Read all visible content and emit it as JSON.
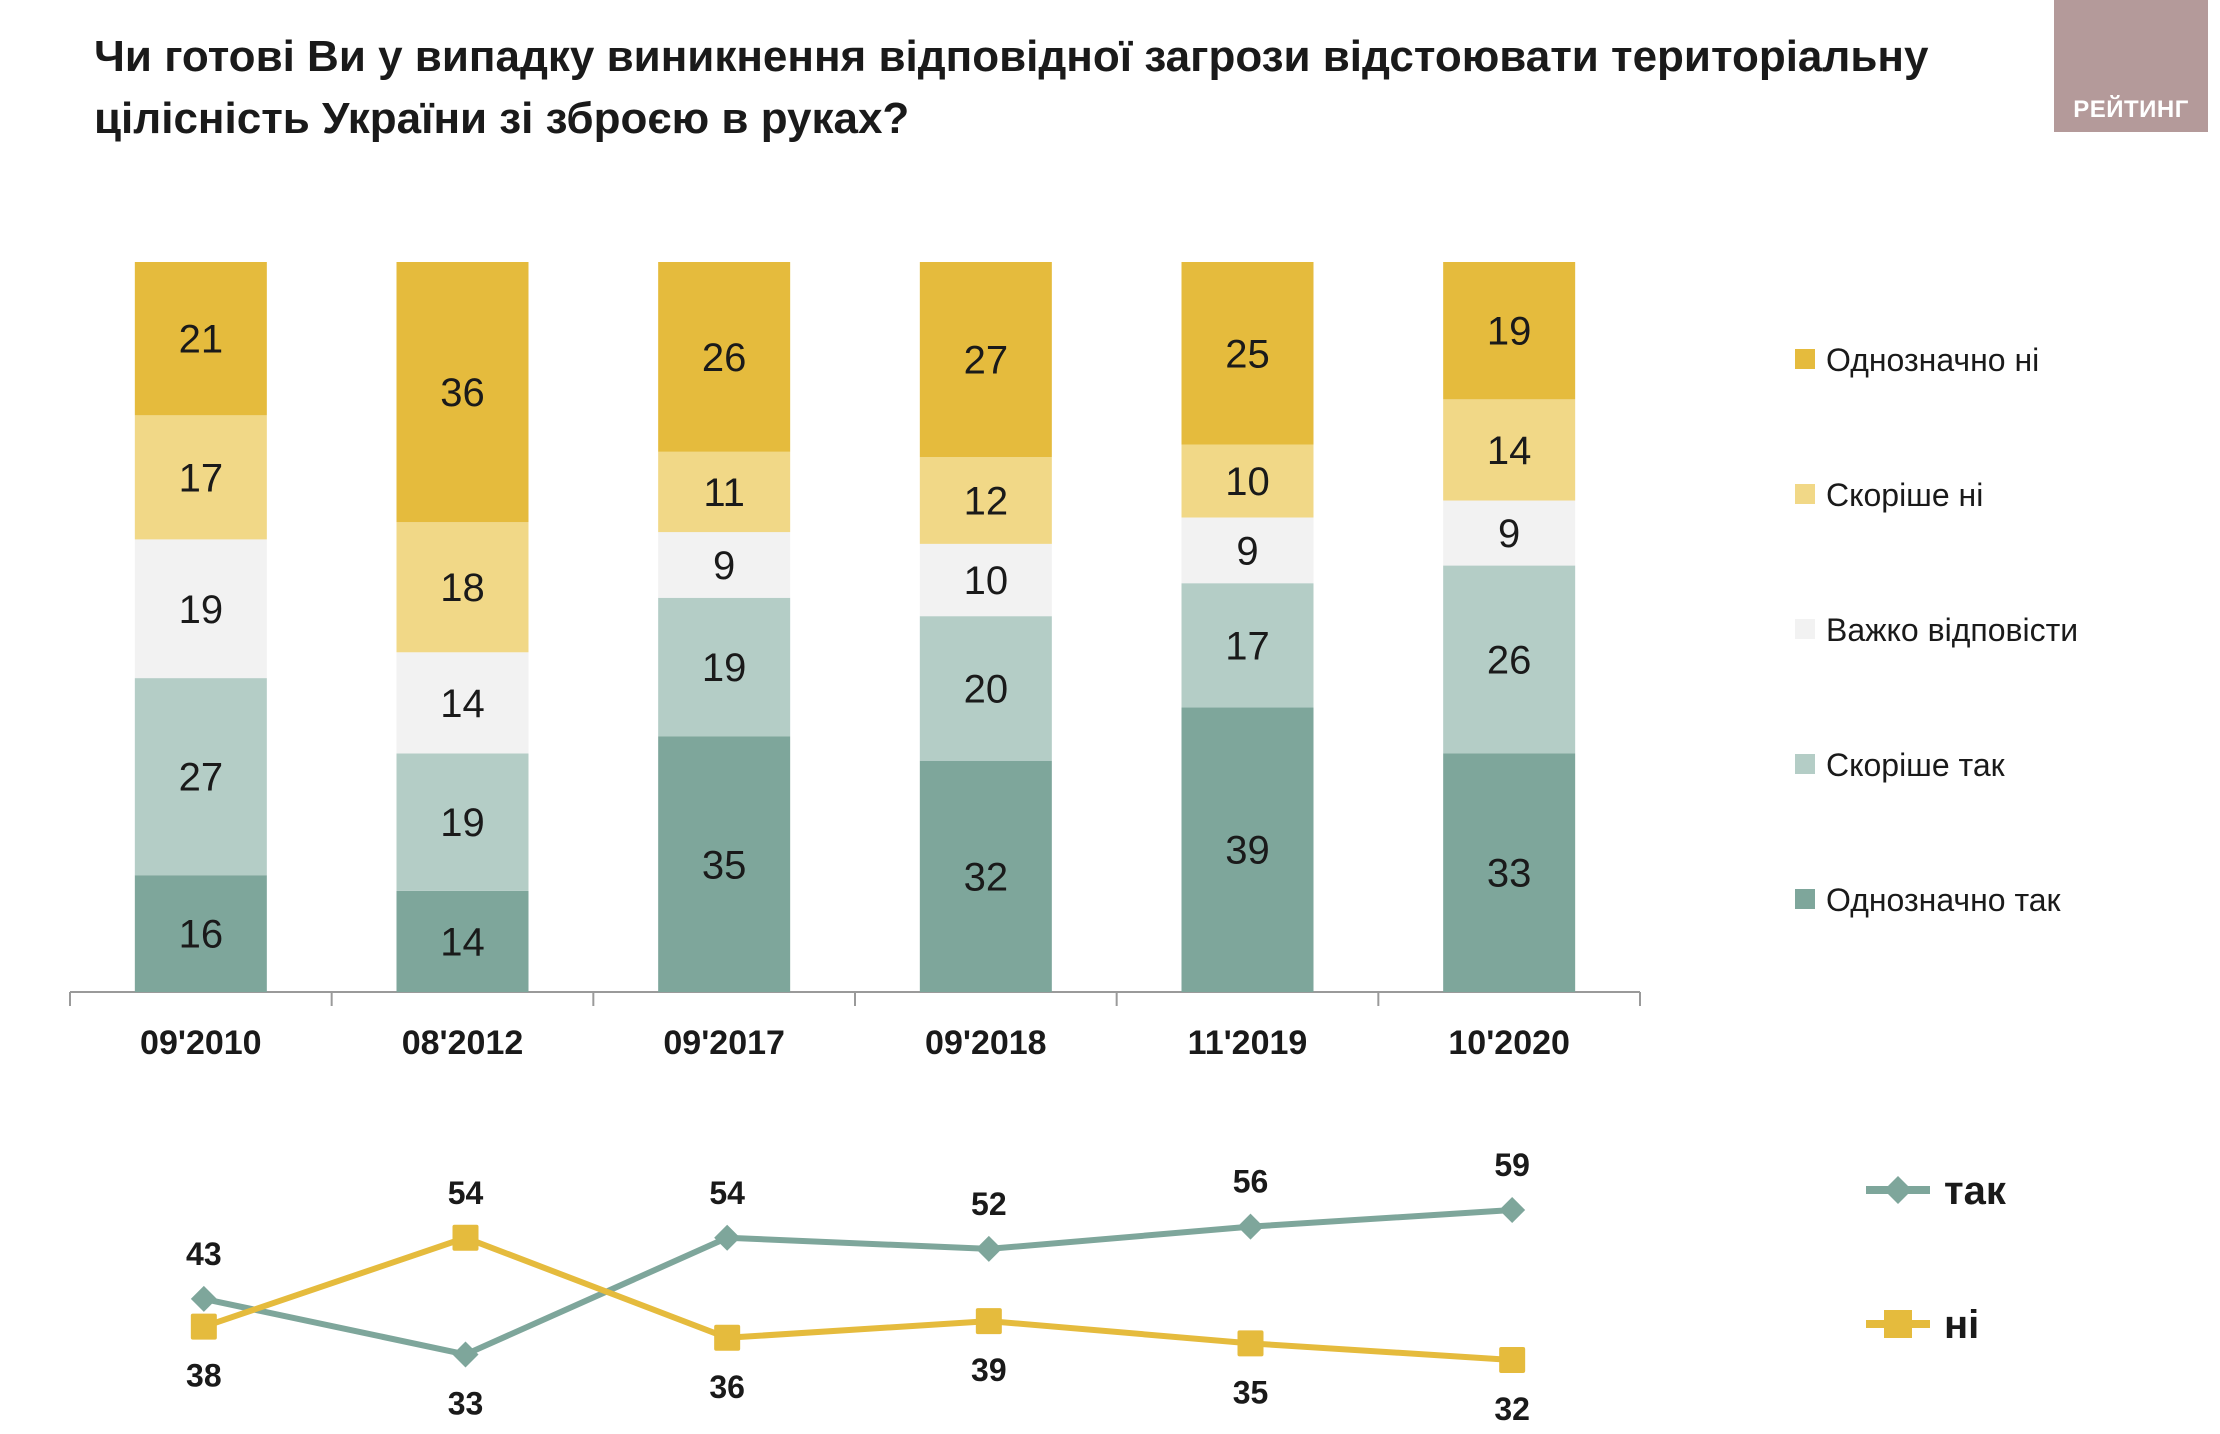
{
  "header": {
    "title_lines": [
      "Чи готові Ви у випадку виникнення відповідної загрози відстоювати територіальну",
      "цілісність України зі зброєю в руках?"
    ],
    "logo_text": "РЕЙТИНГ"
  },
  "chart_data": [
    {
      "type": "bar",
      "stacked": true,
      "categories": [
        "09'2010",
        "08'2012",
        "09'2017",
        "09'2018",
        "11'2019",
        "10'2020"
      ],
      "series": [
        {
          "name": "Однозначно так",
          "color": "#7ea69b",
          "values": [
            16,
            14,
            35,
            32,
            39,
            33
          ]
        },
        {
          "name": "Скоріше так",
          "color": "#b4cdc6",
          "values": [
            27,
            19,
            19,
            20,
            17,
            26
          ]
        },
        {
          "name": "Важко відповісти",
          "color": "#f2f2f2",
          "values": [
            19,
            14,
            9,
            10,
            9,
            9
          ]
        },
        {
          "name": "Скоріше ні",
          "color": "#f1d887",
          "values": [
            17,
            18,
            11,
            12,
            10,
            14
          ]
        },
        {
          "name": "Однозначно ні",
          "color": "#e5bb3d",
          "values": [
            21,
            36,
            26,
            27,
            25,
            19
          ]
        }
      ],
      "legend_order": [
        "Однозначно ні",
        "Скоріше ні",
        "Важко відповісти",
        "Скоріше так",
        "Однозначно так"
      ],
      "legend_position": "right",
      "grid": false
    },
    {
      "type": "line",
      "categories": [
        "09'2010",
        "08'2012",
        "09'2017",
        "09'2018",
        "11'2019",
        "10'2020"
      ],
      "series": [
        {
          "name": "так",
          "color": "#7ea69b",
          "marker": "diamond",
          "values": [
            43,
            33,
            54,
            52,
            56,
            59
          ]
        },
        {
          "name": "ні",
          "color": "#e5bb3d",
          "marker": "square",
          "values": [
            38,
            54,
            36,
            39,
            35,
            32
          ]
        }
      ],
      "legend_position": "right",
      "grid": false
    }
  ]
}
